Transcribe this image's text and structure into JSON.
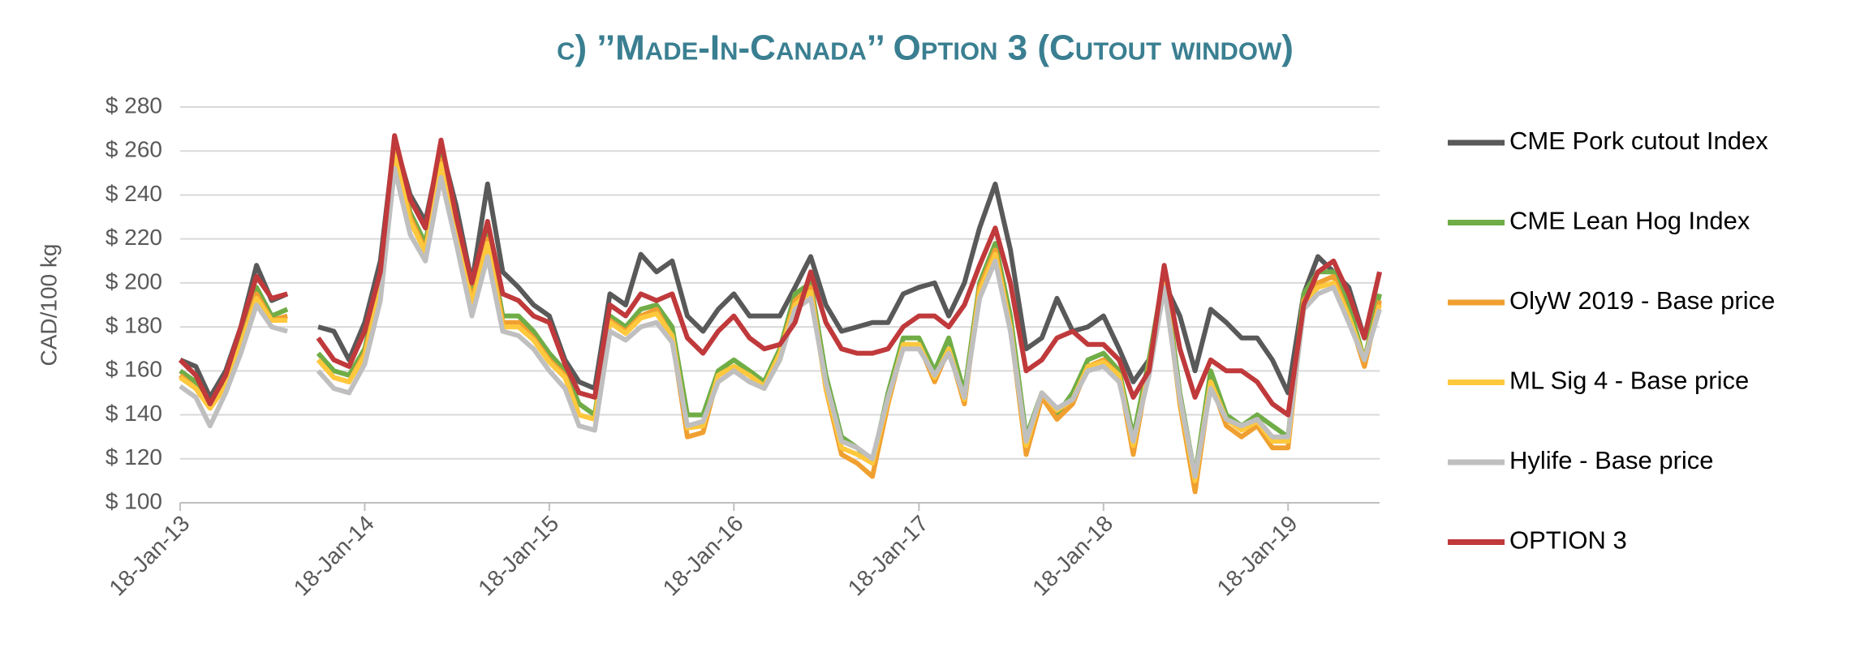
{
  "chart_data": {
    "type": "line",
    "title": "c) ’’Made-In-Canada’’ Option 3 (Cutout window)",
    "ylabel": "CAD/100 kg",
    "legend": "right",
    "grid": true,
    "x": [
      "2013-01-18",
      "2013-02-18",
      "2013-03-18",
      "2013-04-18",
      "2013-05-18",
      "2013-06-18",
      "2013-07-18",
      "2013-08-18",
      "2013-09-18",
      "2013-10-18",
      "2013-11-18",
      "2013-12-18",
      "2014-01-18",
      "2014-02-18",
      "2014-03-18",
      "2014-04-18",
      "2014-05-18",
      "2014-06-18",
      "2014-07-18",
      "2014-08-18",
      "2014-09-18",
      "2014-10-18",
      "2014-11-18",
      "2014-12-18",
      "2015-01-18",
      "2015-02-18",
      "2015-03-18",
      "2015-04-18",
      "2015-05-18",
      "2015-06-18",
      "2015-07-18",
      "2015-08-18",
      "2015-09-18",
      "2015-10-18",
      "2015-11-18",
      "2015-12-18",
      "2016-01-18",
      "2016-02-18",
      "2016-03-18",
      "2016-04-18",
      "2016-05-18",
      "2016-06-18",
      "2016-07-18",
      "2016-08-18",
      "2016-09-18",
      "2016-10-18",
      "2016-11-18",
      "2016-12-18",
      "2017-01-18",
      "2017-02-18",
      "2017-03-18",
      "2017-04-18",
      "2017-05-18",
      "2017-06-18",
      "2017-07-18",
      "2017-08-18",
      "2017-09-18",
      "2017-10-18",
      "2017-11-18",
      "2017-12-18",
      "2018-01-18",
      "2018-02-18",
      "2018-03-18",
      "2018-04-18",
      "2018-05-18",
      "2018-06-18",
      "2018-07-18",
      "2018-08-18",
      "2018-09-18",
      "2018-10-18",
      "2018-11-18",
      "2018-12-18",
      "2019-01-18",
      "2019-02-18",
      "2019-03-18",
      "2019-04-18",
      "2019-05-18",
      "2019-06-18",
      "2019-07-18"
    ],
    "xlim": [
      "2013-01-18",
      "2019-07-18"
    ],
    "xticks": [
      {
        "value": "2013-01-18",
        "label": "18-Jan-13"
      },
      {
        "value": "2014-01-18",
        "label": "18-Jan-14"
      },
      {
        "value": "2015-01-18",
        "label": "18-Jan-15"
      },
      {
        "value": "2016-01-18",
        "label": "18-Jan-16"
      },
      {
        "value": "2017-01-18",
        "label": "18-Jan-17"
      },
      {
        "value": "2018-01-18",
        "label": "18-Jan-18"
      },
      {
        "value": "2019-01-18",
        "label": "18-Jan-19"
      }
    ],
    "ylim": [
      100,
      280
    ],
    "yticks": [
      {
        "value": 100,
        "label": "$ 100"
      },
      {
        "value": 120,
        "label": "$ 120"
      },
      {
        "value": 140,
        "label": "$ 140"
      },
      {
        "value": 160,
        "label": "$ 160"
      },
      {
        "value": 180,
        "label": "$ 180"
      },
      {
        "value": 200,
        "label": "$ 200"
      },
      {
        "value": 220,
        "label": "$ 220"
      },
      {
        "value": 240,
        "label": "$ 240"
      },
      {
        "value": 260,
        "label": "$ 260"
      },
      {
        "value": 280,
        "label": "$ 280"
      }
    ],
    "series": [
      {
        "name": "CME Pork cutout Index",
        "color": "#595959",
        "values": [
          165,
          162,
          148,
          160,
          180,
          208,
          192,
          195,
          null,
          180,
          178,
          165,
          182,
          210,
          265,
          240,
          228,
          262,
          235,
          200,
          245,
          205,
          198,
          190,
          185,
          165,
          155,
          152,
          195,
          190,
          213,
          205,
          210,
          185,
          178,
          188,
          195,
          185,
          185,
          185,
          198,
          212,
          190,
          178,
          180,
          182,
          182,
          195,
          198,
          200,
          185,
          200,
          225,
          245,
          215,
          170,
          175,
          193,
          178,
          180,
          185,
          170,
          155,
          165,
          200,
          185,
          160,
          188,
          182,
          175,
          175,
          165,
          150,
          195,
          212,
          205,
          198,
          175,
          205
        ]
      },
      {
        "name": "CME Lean Hog Index",
        "color": "#70ad47",
        "values": [
          160,
          155,
          145,
          155,
          175,
          198,
          185,
          188,
          null,
          168,
          160,
          158,
          170,
          200,
          262,
          232,
          218,
          258,
          228,
          195,
          222,
          185,
          185,
          178,
          168,
          160,
          145,
          140,
          185,
          180,
          188,
          190,
          180,
          140,
          140,
          160,
          165,
          160,
          155,
          170,
          195,
          200,
          158,
          130,
          125,
          118,
          150,
          175,
          175,
          160,
          175,
          150,
          200,
          218,
          185,
          130,
          150,
          140,
          150,
          165,
          168,
          160,
          130,
          165,
          205,
          150,
          112,
          160,
          140,
          135,
          140,
          135,
          130,
          195,
          205,
          205,
          190,
          165,
          195
        ]
      },
      {
        "name": "OlyW 2019 - Base price",
        "color": "#f0a030",
        "values": [
          158,
          152,
          143,
          153,
          172,
          195,
          183,
          185,
          null,
          165,
          157,
          155,
          168,
          198,
          260,
          230,
          215,
          256,
          225,
          192,
          220,
          182,
          182,
          175,
          165,
          158,
          140,
          138,
          183,
          178,
          185,
          188,
          175,
          130,
          132,
          158,
          162,
          158,
          152,
          168,
          192,
          198,
          152,
          122,
          118,
          112,
          145,
          172,
          172,
          155,
          170,
          145,
          198,
          215,
          180,
          122,
          148,
          138,
          145,
          162,
          165,
          158,
          122,
          162,
          203,
          145,
          105,
          155,
          135,
          130,
          135,
          125,
          125,
          192,
          200,
          203,
          185,
          162,
          192
        ]
      },
      {
        "name": "ML Sig 4 - Base price",
        "color": "#ffc83d",
        "values": [
          157,
          152,
          143,
          153,
          172,
          193,
          183,
          183,
          null,
          165,
          157,
          155,
          167,
          197,
          258,
          228,
          214,
          254,
          223,
          190,
          218,
          180,
          180,
          174,
          164,
          157,
          140,
          138,
          182,
          177,
          184,
          186,
          176,
          134,
          135,
          158,
          162,
          158,
          153,
          168,
          190,
          196,
          153,
          125,
          122,
          118,
          147,
          172,
          172,
          157,
          170,
          147,
          196,
          213,
          180,
          126,
          150,
          142,
          147,
          162,
          164,
          158,
          126,
          161,
          200,
          147,
          110,
          155,
          138,
          133,
          137,
          128,
          128,
          190,
          198,
          200,
          185,
          165,
          190
        ]
      },
      {
        "name": "Hylife  - Base price",
        "color": "#bfbfbf",
        "values": [
          153,
          148,
          135,
          150,
          168,
          190,
          180,
          178,
          null,
          160,
          152,
          150,
          163,
          192,
          252,
          222,
          210,
          248,
          218,
          185,
          212,
          178,
          176,
          170,
          160,
          152,
          135,
          133,
          178,
          174,
          180,
          182,
          173,
          135,
          137,
          155,
          160,
          155,
          152,
          165,
          188,
          193,
          155,
          128,
          125,
          120,
          148,
          170,
          170,
          158,
          168,
          148,
          193,
          210,
          178,
          128,
          150,
          143,
          147,
          160,
          162,
          155,
          128,
          158,
          198,
          148,
          112,
          152,
          138,
          135,
          138,
          130,
          130,
          188,
          195,
          198,
          182,
          165,
          188
        ]
      },
      {
        "name": "OPTION 3",
        "color": "#c0393b",
        "values": [
          165,
          158,
          145,
          158,
          180,
          203,
          193,
          195,
          null,
          175,
          165,
          162,
          178,
          205,
          267,
          238,
          225,
          265,
          230,
          200,
          228,
          195,
          192,
          185,
          182,
          163,
          150,
          148,
          190,
          185,
          195,
          192,
          195,
          175,
          168,
          178,
          185,
          175,
          170,
          172,
          182,
          205,
          182,
          170,
          168,
          168,
          170,
          180,
          185,
          185,
          180,
          190,
          208,
          225,
          200,
          160,
          165,
          175,
          178,
          172,
          172,
          165,
          148,
          160,
          208,
          170,
          148,
          165,
          160,
          160,
          155,
          145,
          140,
          190,
          205,
          210,
          195,
          175,
          205
        ]
      }
    ]
  }
}
